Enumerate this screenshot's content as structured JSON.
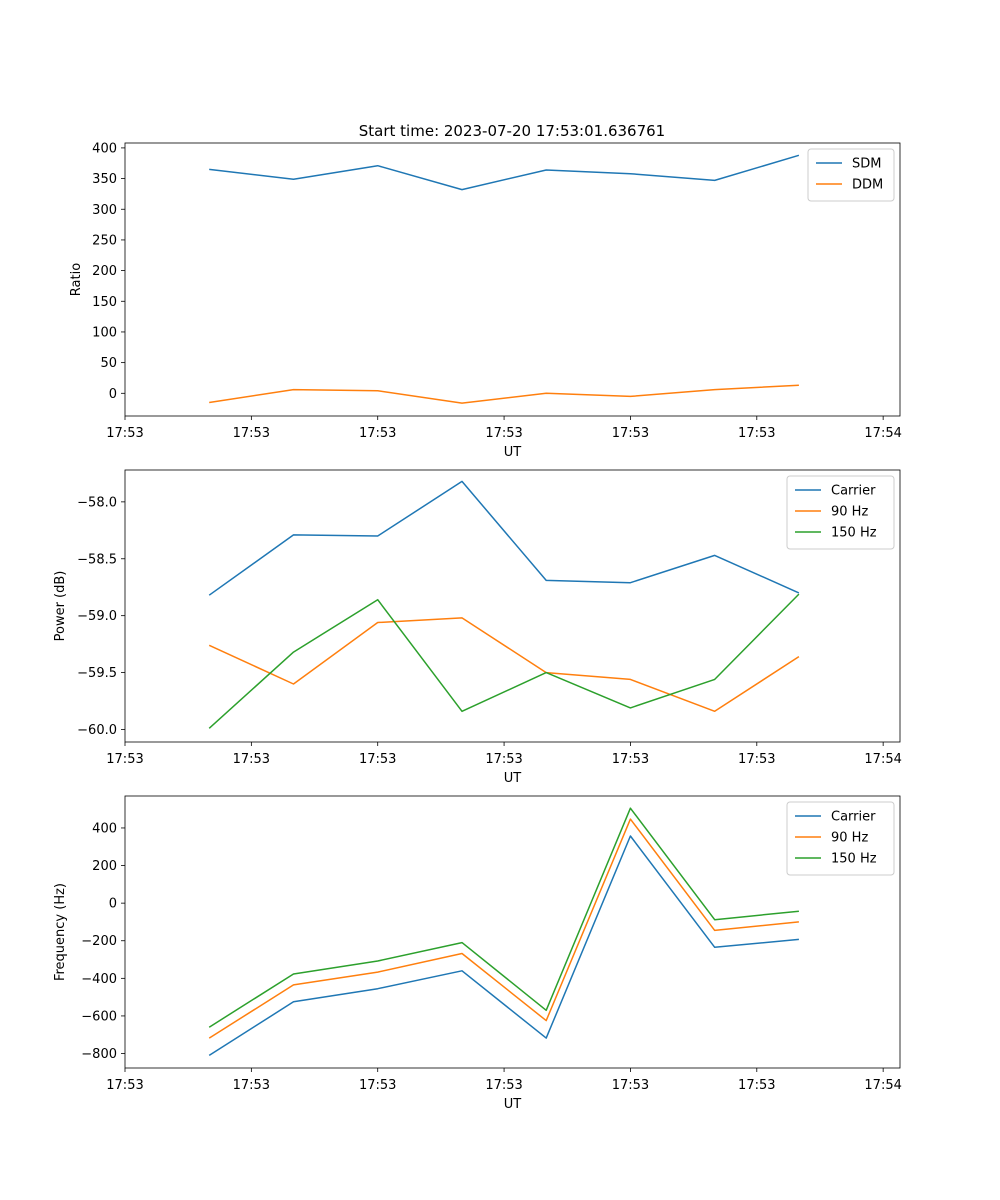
{
  "figure_title": "Start time: 2023-07-20 17:53:01.636761",
  "colors": {
    "blue": "#1f77b4",
    "orange": "#ff7f0e",
    "green": "#2ca02c"
  },
  "chart_data": [
    {
      "type": "line",
      "xlabel": "UT",
      "ylabel": "Ratio",
      "xlim": [
        0,
        9.2
      ],
      "ylim": [
        -37,
        408
      ],
      "x": [
        1,
        2,
        3,
        4,
        5,
        6,
        7,
        8
      ],
      "xticks": [
        {
          "v": 0,
          "label": "17:53"
        },
        {
          "v": 1.5,
          "label": "17:53"
        },
        {
          "v": 3,
          "label": "17:53"
        },
        {
          "v": 4.5,
          "label": "17:53"
        },
        {
          "v": 6,
          "label": "17:53"
        },
        {
          "v": 7.5,
          "label": "17:53"
        },
        {
          "v": 9,
          "label": "17:54"
        }
      ],
      "yticks": [
        0,
        50,
        100,
        150,
        200,
        250,
        300,
        350,
        400
      ],
      "legend": "top-right",
      "series": [
        {
          "name": "SDM",
          "color": "#1f77b4",
          "values": [
            365,
            349,
            371,
            332,
            364,
            358,
            347,
            388
          ]
        },
        {
          "name": "DDM",
          "color": "#ff7f0e",
          "values": [
            -15,
            6,
            4,
            -16,
            0,
            -5,
            6,
            13
          ]
        }
      ]
    },
    {
      "type": "line",
      "xlabel": "UT",
      "ylabel": "Power (dB)",
      "xlim": [
        0,
        9.2
      ],
      "ylim": [
        -60.11,
        -57.72
      ],
      "x": [
        1,
        2,
        3,
        4,
        5,
        6,
        7,
        8
      ],
      "xticks": [
        {
          "v": 0,
          "label": "17:53"
        },
        {
          "v": 1.5,
          "label": "17:53"
        },
        {
          "v": 3,
          "label": "17:53"
        },
        {
          "v": 4.5,
          "label": "17:53"
        },
        {
          "v": 6,
          "label": "17:53"
        },
        {
          "v": 7.5,
          "label": "17:53"
        },
        {
          "v": 9,
          "label": "17:54"
        }
      ],
      "yticks": [
        {
          "v": -60.0,
          "label": "−60.0"
        },
        {
          "v": -59.5,
          "label": "−59.5"
        },
        {
          "v": -59.0,
          "label": "−59.0"
        },
        {
          "v": -58.5,
          "label": "−58.5"
        },
        {
          "v": -58.0,
          "label": "−58.0"
        }
      ],
      "legend": "top-right",
      "series": [
        {
          "name": "Carrier",
          "color": "#1f77b4",
          "values": [
            -58.82,
            -58.29,
            -58.3,
            -57.82,
            -58.69,
            -58.71,
            -58.47,
            -58.8
          ]
        },
        {
          "name": "90 Hz",
          "color": "#ff7f0e",
          "values": [
            -59.26,
            -59.6,
            -59.06,
            -59.02,
            -59.5,
            -59.56,
            -59.84,
            -59.36
          ]
        },
        {
          "name": "150 Hz",
          "color": "#2ca02c",
          "values": [
            -59.99,
            -59.32,
            -58.86,
            -59.84,
            -59.5,
            -59.81,
            -59.56,
            -58.81
          ]
        }
      ]
    },
    {
      "type": "line",
      "xlabel": "UT",
      "ylabel": "Frequency (Hz)",
      "xlim": [
        0,
        9.2
      ],
      "ylim": [
        -877,
        570
      ],
      "x": [
        1,
        2,
        3,
        4,
        5,
        6,
        7,
        8
      ],
      "xticks": [
        {
          "v": 0,
          "label": "17:53"
        },
        {
          "v": 1.5,
          "label": "17:53"
        },
        {
          "v": 3,
          "label": "17:53"
        },
        {
          "v": 4.5,
          "label": "17:53"
        },
        {
          "v": 6,
          "label": "17:53"
        },
        {
          "v": 7.5,
          "label": "17:53"
        },
        {
          "v": 9,
          "label": "17:54"
        }
      ],
      "yticks": [
        {
          "v": -800,
          "label": "−800"
        },
        {
          "v": -600,
          "label": "−600"
        },
        {
          "v": -400,
          "label": "−400"
        },
        {
          "v": -200,
          "label": "−200"
        },
        {
          "v": 0,
          "label": "0"
        },
        {
          "v": 200,
          "label": "200"
        },
        {
          "v": 400,
          "label": "400"
        }
      ],
      "legend": "top-right",
      "series": [
        {
          "name": "Carrier",
          "color": "#1f77b4",
          "values": [
            -810,
            -525,
            -455,
            -360,
            -718,
            357,
            -235,
            -193
          ]
        },
        {
          "name": "90 Hz",
          "color": "#ff7f0e",
          "values": [
            -718,
            -435,
            -367,
            -268,
            -625,
            447,
            -145,
            -100
          ]
        },
        {
          "name": "150 Hz",
          "color": "#2ca02c",
          "values": [
            -660,
            -377,
            -308,
            -210,
            -570,
            505,
            -88,
            -43
          ]
        }
      ]
    }
  ]
}
